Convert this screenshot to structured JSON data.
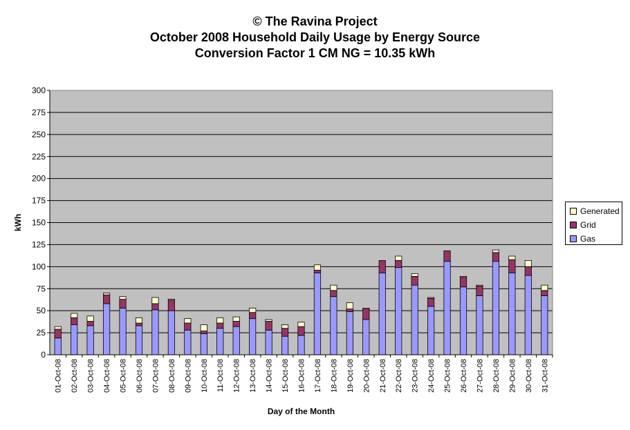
{
  "titles": {
    "line1": "© The Ravina Project",
    "line2": "October 2008 Household Daily Usage by Energy Source",
    "line3": "Conversion Factor 1 CM NG = 10.35 kWh"
  },
  "colors": {
    "plot_bg": "#c0c0c0",
    "gas": "#9999ff",
    "grid": "#993366",
    "generated": "#ffffcc"
  },
  "chart_data": {
    "type": "bar",
    "stacked": true,
    "xlabel": "Day of the Month",
    "ylabel": "kWh",
    "ylim": [
      0,
      300
    ],
    "yticks": [
      0,
      25,
      50,
      75,
      100,
      125,
      150,
      175,
      200,
      225,
      250,
      275,
      300
    ],
    "grid": true,
    "legend_position": "right",
    "categories": [
      "01-Oct-08",
      "02-Oct-08",
      "03-Oct-08",
      "04-Oct-08",
      "05-Oct-08",
      "06-Oct-08",
      "07-Oct-08",
      "08-Oct-08",
      "09-Oct-08",
      "10-Oct-08",
      "11-Oct-08",
      "12-Oct-08",
      "13-Oct-08",
      "14-Oct-08",
      "15-Oct-08",
      "16-Oct-08",
      "17-Oct-08",
      "18-Oct-08",
      "19-Oct-08",
      "20-Oct-08",
      "21-Oct-08",
      "22-Oct-08",
      "23-Oct-08",
      "24-Oct-08",
      "25-Oct-08",
      "26-Oct-08",
      "27-Oct-08",
      "28-Oct-08",
      "29-Oct-08",
      "30-Oct-08",
      "31-Oct-08"
    ],
    "series": [
      {
        "name": "Gas",
        "values": [
          19,
          34,
          33,
          58,
          53,
          33,
          51,
          50,
          28,
          24,
          30,
          32,
          41,
          28,
          21,
          22,
          93,
          66,
          49,
          40,
          93,
          99,
          79,
          55,
          106,
          77,
          67,
          106,
          93,
          90,
          67
        ]
      },
      {
        "name": "Grid",
        "values": [
          10,
          8,
          5,
          10,
          10,
          3,
          7,
          12,
          8,
          3,
          6,
          6,
          7,
          10,
          9,
          10,
          3,
          7,
          3,
          12,
          14,
          8,
          10,
          9,
          12,
          11,
          11,
          10,
          15,
          10,
          6
        ]
      },
      {
        "name": "Generated",
        "values": [
          3,
          5,
          6,
          2,
          3,
          6,
          7,
          1,
          5,
          7,
          6,
          5,
          5,
          2,
          4,
          5,
          6,
          6,
          7,
          1,
          0,
          5,
          3,
          1,
          0,
          1,
          1,
          3,
          4,
          7,
          6
        ]
      }
    ],
    "legend_order": [
      "Generated",
      "Grid",
      "Gas"
    ]
  }
}
